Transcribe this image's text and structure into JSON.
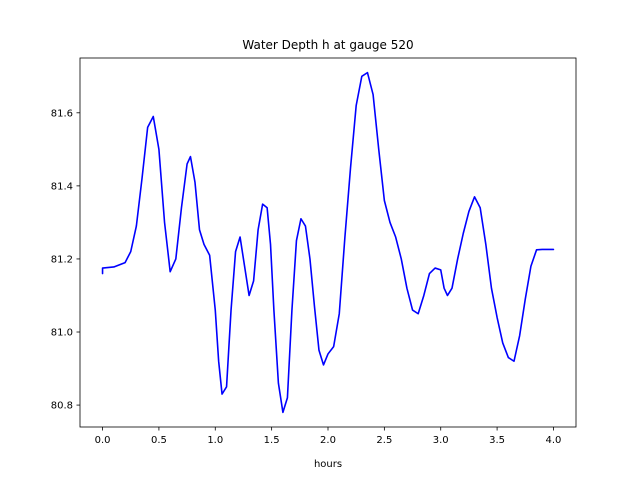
{
  "chart_data": {
    "type": "line",
    "title": "Water Depth h at gauge 520",
    "xlabel": "hours",
    "ylabel": "",
    "xlim": [
      -0.2,
      4.2
    ],
    "ylim": [
      80.74,
      81.75
    ],
    "xticks": [
      0.0,
      0.5,
      1.0,
      1.5,
      2.0,
      2.5,
      3.0,
      3.5,
      4.0
    ],
    "xtick_labels": [
      "0.0",
      "0.5",
      "1.0",
      "1.5",
      "2.0",
      "2.5",
      "3.0",
      "3.5",
      "4.0"
    ],
    "yticks": [
      80.8,
      81.0,
      81.2,
      81.4,
      81.6
    ],
    "ytick_labels": [
      "80.8",
      "81.0",
      "81.2",
      "81.4",
      "81.6"
    ],
    "grid": false,
    "series": [
      {
        "color": "#0000ff",
        "x": [
          0.0,
          0.0,
          0.1,
          0.2,
          0.25,
          0.3,
          0.35,
          0.4,
          0.45,
          0.5,
          0.55,
          0.6,
          0.65,
          0.7,
          0.75,
          0.78,
          0.82,
          0.86,
          0.9,
          0.95,
          1.0,
          1.03,
          1.06,
          1.1,
          1.14,
          1.18,
          1.22,
          1.26,
          1.3,
          1.34,
          1.38,
          1.42,
          1.46,
          1.49,
          1.52,
          1.56,
          1.6,
          1.64,
          1.68,
          1.72,
          1.76,
          1.8,
          1.84,
          1.88,
          1.92,
          1.96,
          2.0,
          2.05,
          2.1,
          2.15,
          2.2,
          2.25,
          2.3,
          2.35,
          2.4,
          2.45,
          2.5,
          2.55,
          2.6,
          2.65,
          2.7,
          2.75,
          2.8,
          2.85,
          2.9,
          2.95,
          3.0,
          3.03,
          3.06,
          3.1,
          3.15,
          3.2,
          3.25,
          3.3,
          3.35,
          3.4,
          3.45,
          3.5,
          3.55,
          3.6,
          3.65,
          3.7,
          3.75,
          3.8,
          3.85,
          3.9,
          3.95,
          4.0
        ],
        "y": [
          81.16,
          81.175,
          81.178,
          81.19,
          81.22,
          81.29,
          81.42,
          81.56,
          81.59,
          81.5,
          81.3,
          81.165,
          81.2,
          81.34,
          81.46,
          81.48,
          81.41,
          81.28,
          81.24,
          81.21,
          81.06,
          80.92,
          80.83,
          80.85,
          81.06,
          81.22,
          81.26,
          81.18,
          81.1,
          81.14,
          81.28,
          81.35,
          81.34,
          81.24,
          81.06,
          80.86,
          80.78,
          80.82,
          81.06,
          81.25,
          81.31,
          81.29,
          81.2,
          81.07,
          80.95,
          80.91,
          80.94,
          80.96,
          81.05,
          81.26,
          81.45,
          81.62,
          81.7,
          81.71,
          81.65,
          81.5,
          81.36,
          81.3,
          81.26,
          81.2,
          81.12,
          81.06,
          81.05,
          81.1,
          81.16,
          81.175,
          81.17,
          81.12,
          81.1,
          81.12,
          81.2,
          81.27,
          81.33,
          81.37,
          81.34,
          81.24,
          81.12,
          81.04,
          80.97,
          80.93,
          80.92,
          80.99,
          81.09,
          81.18,
          81.225,
          81.226,
          81.226,
          81.226
        ]
      }
    ]
  }
}
